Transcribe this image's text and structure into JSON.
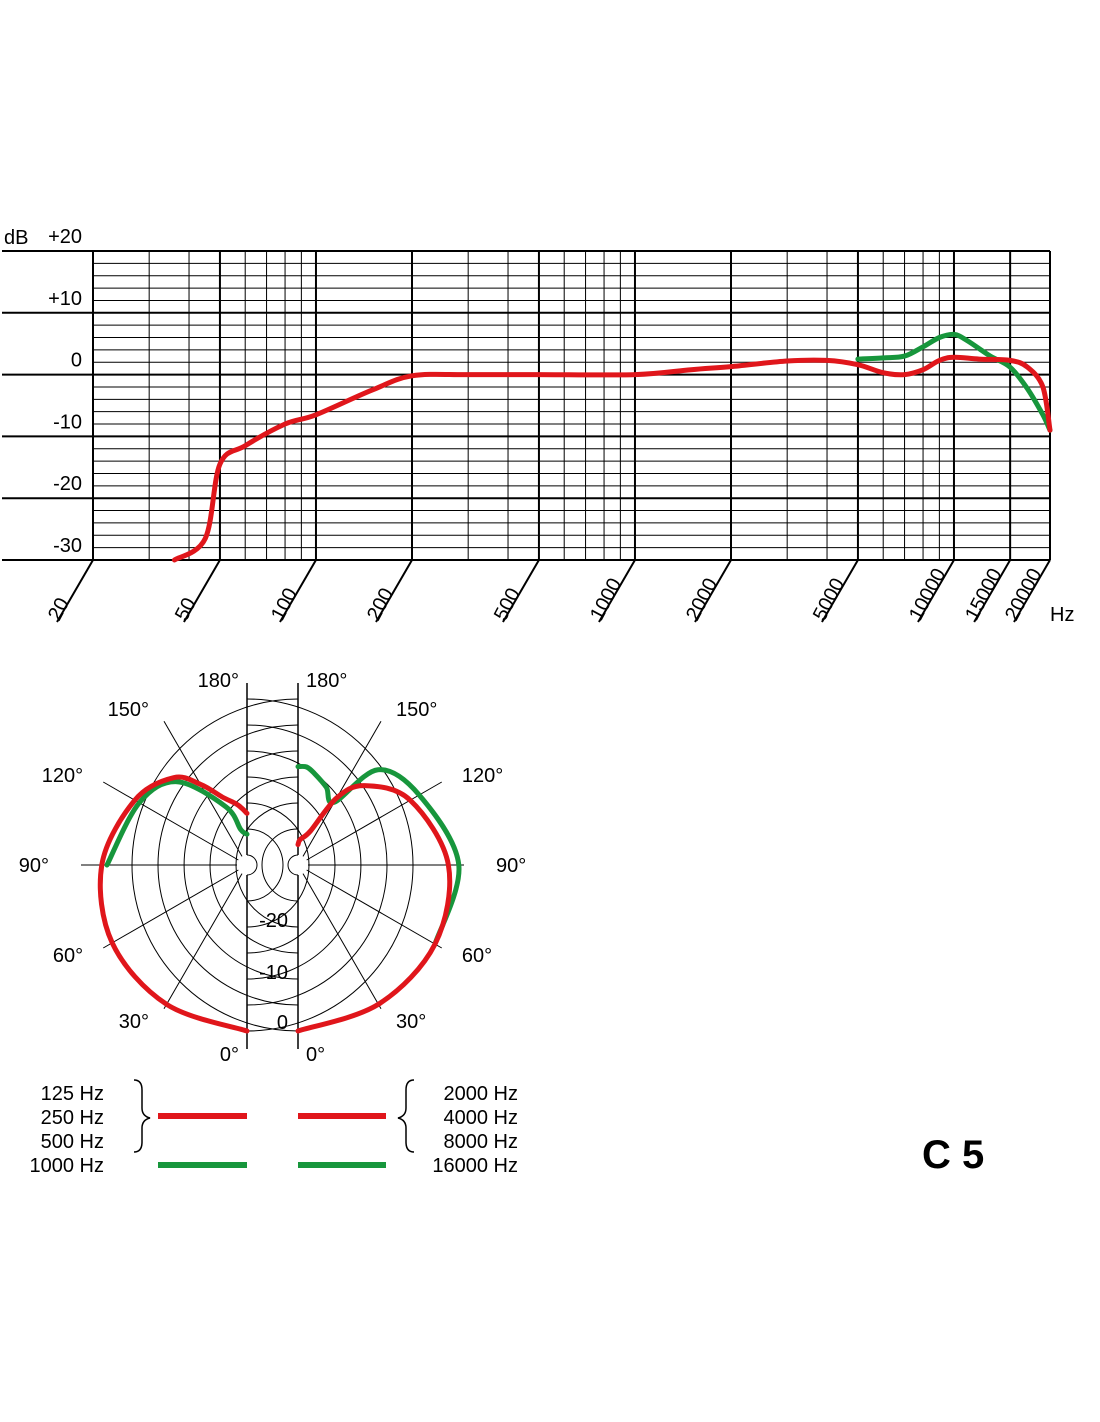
{
  "colors": {
    "red": "#e0161b",
    "green": "#17963c",
    "grid": "#000000"
  },
  "model": "C 5",
  "chart_data": [
    {
      "type": "line",
      "xscale": "log",
      "xlim": [
        20,
        20000
      ],
      "ylim": [
        -30,
        20
      ],
      "ylabel": "dB",
      "xunit": "Hz",
      "y_ticks": [
        {
          "v": 20,
          "label": "+20"
        },
        {
          "v": 10,
          "label": "+10"
        },
        {
          "v": 0,
          "label": "0"
        },
        {
          "v": -10,
          "label": "-10"
        },
        {
          "v": -20,
          "label": "-20"
        },
        {
          "v": -30,
          "label": "-30"
        }
      ],
      "x_ticks": [
        {
          "v": 20,
          "label": "20"
        },
        {
          "v": 50,
          "label": "50"
        },
        {
          "v": 100,
          "label": "100"
        },
        {
          "v": 200,
          "label": "200"
        },
        {
          "v": 500,
          "label": "500"
        },
        {
          "v": 1000,
          "label": "1000"
        },
        {
          "v": 2000,
          "label": "2000"
        },
        {
          "v": 5000,
          "label": "5000"
        },
        {
          "v": 10000,
          "label": "10000"
        },
        {
          "v": 15000,
          "label": "15000"
        },
        {
          "v": 20000,
          "label": "20000"
        }
      ],
      "series": [
        {
          "color": "red",
          "points": [
            [
              36,
              -30
            ],
            [
              45,
              -26.5
            ],
            [
              50,
              -14.5
            ],
            [
              60,
              -11.5
            ],
            [
              80,
              -8
            ],
            [
              100,
              -6.5
            ],
            [
              150,
              -2.5
            ],
            [
              200,
              -0.2
            ],
            [
              300,
              0
            ],
            [
              500,
              0
            ],
            [
              1000,
              0
            ],
            [
              1500,
              0.8
            ],
            [
              2000,
              1.3
            ],
            [
              3000,
              2.2
            ],
            [
              4000,
              2.3
            ],
            [
              5000,
              1.6
            ],
            [
              6000,
              0.3
            ],
            [
              7000,
              0
            ],
            [
              8000,
              0.8
            ],
            [
              9000,
              2.3
            ],
            [
              10000,
              2.8
            ],
            [
              12000,
              2.5
            ],
            [
              15000,
              2.3
            ],
            [
              17000,
              1.2
            ],
            [
              19000,
              -2
            ],
            [
              20000,
              -9
            ]
          ]
        },
        {
          "color": "green",
          "points": [
            [
              5000,
              2.5
            ],
            [
              6000,
              2.7
            ],
            [
              7000,
              3
            ],
            [
              8000,
              4.5
            ],
            [
              9000,
              6
            ],
            [
              10000,
              6.5
            ],
            [
              11000,
              5.5
            ],
            [
              13000,
              3
            ],
            [
              15000,
              1.2
            ],
            [
              17000,
              -2.3
            ],
            [
              19000,
              -6.5
            ],
            [
              20000,
              -9
            ]
          ]
        }
      ]
    },
    {
      "type": "polar",
      "rlim": [
        -30,
        0
      ],
      "r_ticks": [
        {
          "v": -20,
          "label": "-20"
        },
        {
          "v": -10,
          "label": "-10"
        },
        {
          "v": 0,
          "label": "0"
        }
      ],
      "angle_labels": [
        {
          "deg": 0,
          "label": "0°"
        },
        {
          "deg": 30,
          "label": "30°"
        },
        {
          "deg": 60,
          "label": "60°"
        },
        {
          "deg": 90,
          "label": "90°"
        },
        {
          "deg": 120,
          "label": "120°"
        },
        {
          "deg": 150,
          "label": "150°"
        },
        {
          "deg": 180,
          "label": "180°"
        }
      ],
      "left": {
        "legend": [
          {
            "label": "125 Hz",
            "color": "red"
          },
          {
            "label": "250 Hz",
            "color": "red"
          },
          {
            "label": "500 Hz",
            "color": "red"
          },
          {
            "label": "1000 Hz",
            "color": "green"
          }
        ],
        "series": [
          {
            "color": "red",
            "points": [
              [
                0,
                0
              ],
              [
                30,
                -1
              ],
              [
                60,
                -2
              ],
              [
                90,
                -4
              ],
              [
                120,
                -7
              ],
              [
                140,
                -10
              ],
              [
                150,
                -14
              ],
              [
                160,
                -18
              ],
              [
                170,
                -20
              ],
              [
                175,
                -21
              ],
              [
                180,
                -22
              ]
            ]
          },
          {
            "color": "green",
            "points": [
              [
                90,
                -5
              ],
              [
                120,
                -8
              ],
              [
                140,
                -11
              ],
              [
                160,
                -20
              ],
              [
                170,
                -25
              ],
              [
                180,
                -26
              ]
            ]
          }
        ]
      },
      "right": {
        "legend": [
          {
            "label": "2000 Hz",
            "color": "red"
          },
          {
            "label": "4000 Hz",
            "color": "red"
          },
          {
            "label": "8000 Hz",
            "color": "red"
          },
          {
            "label": "16000 Hz",
            "color": "green"
          }
        ],
        "series": [
          {
            "color": "red",
            "points": [
              [
                0,
                0
              ],
              [
                30,
                -1
              ],
              [
                60,
                -1.5
              ],
              [
                90,
                -3
              ],
              [
                120,
                -7
              ],
              [
                140,
                -12
              ],
              [
                150,
                -17
              ],
              [
                160,
                -25
              ],
              [
                175,
                -27
              ],
              [
                180,
                -28
              ]
            ]
          },
          {
            "color": "green",
            "points": [
              [
                60,
                -1.5
              ],
              [
                90,
                -1
              ],
              [
                120,
                -5
              ],
              [
                140,
                -8
              ],
              [
                150,
                -18
              ],
              [
                160,
                -16
              ],
              [
                170,
                -14
              ],
              [
                175,
                -13
              ],
              [
                180,
                -13
              ]
            ]
          }
        ]
      }
    }
  ]
}
